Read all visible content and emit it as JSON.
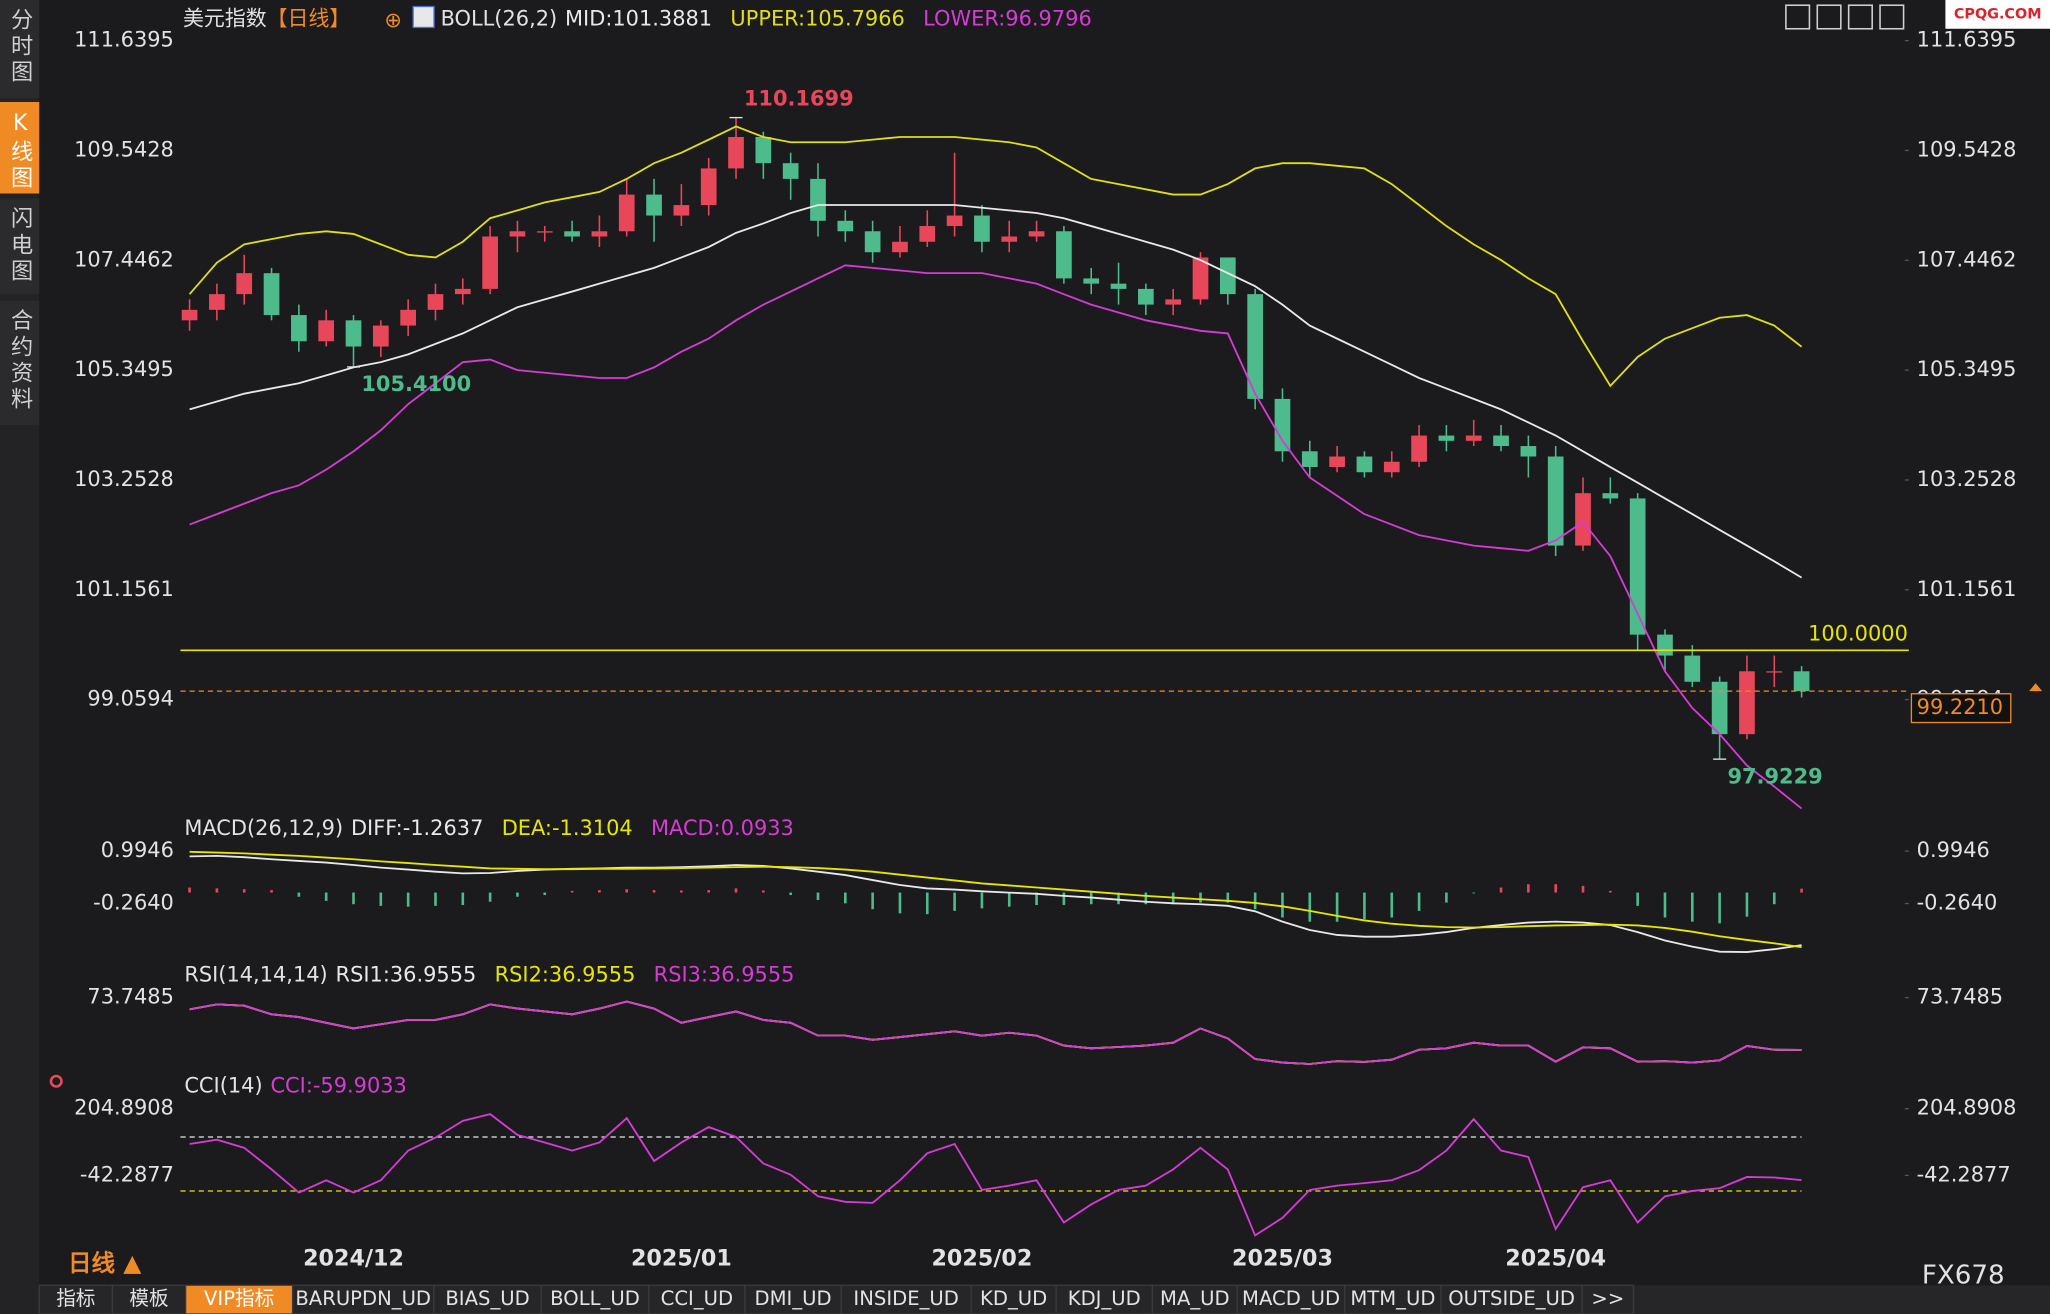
{
  "header": {
    "period_label": "日线 ▲",
    "brand": "FX678",
    "watermark": "CPQG.COM"
  },
  "sidebar": {
    "tabs": [
      "分时图",
      "K线图",
      "闪电图",
      "合约资料"
    ],
    "active_tab": 1
  },
  "bottom_tabs": {
    "tabs": [
      "指标",
      "模板",
      "VIP指标",
      "BARUPDN_UD",
      "BIAS_UD",
      "BOLL_UD",
      "CCI_UD",
      "DMI_UD",
      "INSIDE_UD",
      "KD_UD",
      "KDJ_UD",
      "MA_UD",
      "MACD_UD",
      "MTM_UD",
      "OUTSIDE_UD",
      ">>"
    ],
    "active_tab": 2
  },
  "chart_data": [
    {
      "type": "candlestick",
      "title": "美元指数",
      "subtitle": "【日线】",
      "indicator": "BOLL(26,2)",
      "up_color": "#e8475a",
      "down_color": "#4dbb8c",
      "categories": [
        null,
        null,
        null,
        null,
        null,
        null,
        "2024/12",
        null,
        null,
        null,
        null,
        null,
        null,
        null,
        null,
        null,
        null,
        null,
        "2025/01",
        null,
        null,
        null,
        null,
        null,
        null,
        null,
        null,
        null,
        null,
        "2025/02",
        null,
        null,
        null,
        null,
        null,
        null,
        null,
        null,
        null,
        null,
        "2025/03",
        null,
        null,
        null,
        null,
        null,
        null,
        null,
        null,
        null,
        "2025/04",
        null,
        null,
        null,
        null,
        null,
        null,
        null,
        null,
        null
      ],
      "open": [
        106.3,
        106.5,
        106.8,
        107.2,
        106.4,
        105.9,
        106.3,
        105.8,
        106.2,
        106.5,
        106.8,
        106.9,
        107.9,
        108.0,
        108.0,
        107.9,
        108.0,
        108.7,
        108.3,
        108.5,
        109.2,
        109.8,
        109.3,
        109.0,
        108.2,
        108.0,
        107.6,
        107.8,
        108.1,
        108.3,
        107.8,
        107.9,
        108.0,
        107.1,
        107.0,
        106.9,
        106.6,
        106.7,
        107.5,
        106.8,
        104.8,
        103.8,
        103.5,
        103.7,
        103.4,
        103.6,
        104.1,
        104.0,
        104.1,
        103.9,
        103.7,
        102.0,
        103.0,
        102.9,
        100.3,
        99.9,
        99.4,
        98.4,
        99.6,
        99.6
      ],
      "high": [
        106.7,
        107.0,
        107.55,
        107.3,
        106.6,
        106.5,
        106.4,
        106.3,
        106.7,
        107.0,
        107.1,
        108.1,
        108.2,
        108.1,
        108.2,
        108.3,
        109.0,
        109.0,
        108.9,
        109.4,
        110.1699,
        109.9,
        109.5,
        109.3,
        108.4,
        108.2,
        108.1,
        108.4,
        109.5,
        108.5,
        108.2,
        108.2,
        108.1,
        107.3,
        107.4,
        107.0,
        106.9,
        107.6,
        107.5,
        106.9,
        105.0,
        104.0,
        103.9,
        103.8,
        103.8,
        104.3,
        104.3,
        104.4,
        104.3,
        104.1,
        103.9,
        103.3,
        103.3,
        103.0,
        100.4,
        100.1,
        99.5,
        99.9,
        99.9,
        99.7
      ],
      "low": [
        106.1,
        106.3,
        106.6,
        106.3,
        105.7,
        105.8,
        105.41,
        105.6,
        106.0,
        106.3,
        106.6,
        106.8,
        107.6,
        107.8,
        107.8,
        107.7,
        107.9,
        107.8,
        108.1,
        108.3,
        109.0,
        109.0,
        108.6,
        107.9,
        107.8,
        107.4,
        107.5,
        107.7,
        107.9,
        107.6,
        107.6,
        107.8,
        107.0,
        106.8,
        106.6,
        106.4,
        106.4,
        106.6,
        106.6,
        104.6,
        103.6,
        103.3,
        103.4,
        103.3,
        103.3,
        103.5,
        103.8,
        103.9,
        103.8,
        103.3,
        101.8,
        101.9,
        102.8,
        100.0,
        99.6,
        99.3,
        97.9229,
        98.3,
        99.3,
        99.1
      ],
      "close": [
        106.5,
        106.8,
        107.2,
        106.4,
        105.9,
        106.3,
        105.8,
        106.2,
        106.5,
        106.8,
        106.9,
        107.9,
        108.0,
        108.0,
        107.9,
        108.0,
        108.7,
        108.3,
        108.5,
        109.2,
        109.8,
        109.3,
        109.0,
        108.2,
        108.0,
        107.6,
        107.8,
        108.1,
        108.3,
        107.8,
        107.9,
        108.0,
        107.1,
        107.0,
        106.9,
        106.6,
        106.7,
        107.5,
        106.8,
        104.8,
        103.8,
        103.5,
        103.7,
        103.4,
        103.6,
        104.1,
        104.0,
        104.1,
        103.9,
        103.7,
        102.0,
        103.0,
        102.9,
        100.3,
        99.9,
        99.4,
        98.4,
        99.6,
        99.6,
        99.221
      ],
      "series": [
        {
          "name": "MID:101.3881",
          "color": "#e8e8e8",
          "values": [
            104.6,
            104.75,
            104.9,
            105.0,
            105.1,
            105.25,
            105.4,
            105.5,
            105.65,
            105.85,
            106.05,
            106.3,
            106.55,
            106.7,
            106.85,
            107.0,
            107.15,
            107.3,
            107.5,
            107.7,
            107.97,
            108.15,
            108.35,
            108.5,
            108.5,
            108.5,
            108.5,
            108.5,
            108.5,
            108.45,
            108.4,
            108.35,
            108.25,
            108.1,
            107.95,
            107.8,
            107.65,
            107.45,
            107.2,
            106.95,
            106.6,
            106.2,
            105.95,
            105.7,
            105.45,
            105.2,
            105.0,
            104.8,
            104.6,
            104.35,
            104.1,
            103.8,
            103.5,
            103.2,
            102.9,
            102.6,
            102.3,
            102.0,
            101.7,
            101.3881
          ]
        },
        {
          "name": "UPPER:105.7966",
          "color": "#dede1a",
          "values": [
            106.8,
            107.4,
            107.75,
            107.85,
            107.95,
            108.0,
            107.95,
            107.75,
            107.55,
            107.5,
            107.8,
            108.25,
            108.4,
            108.55,
            108.65,
            108.75,
            109.0,
            109.3,
            109.5,
            109.75,
            110.0,
            109.8,
            109.7,
            109.7,
            109.7,
            109.75,
            109.8,
            109.8,
            109.8,
            109.75,
            109.7,
            109.6,
            109.3,
            109.0,
            108.9,
            108.8,
            108.7,
            108.7,
            108.9,
            109.2,
            109.3,
            109.3,
            109.25,
            109.2,
            108.9,
            108.5,
            108.1,
            107.75,
            107.45,
            107.1,
            106.8,
            105.9,
            105.05,
            105.6,
            105.95,
            106.15,
            106.35,
            106.4,
            106.2,
            105.7966
          ]
        },
        {
          "name": "LOWER:96.9796",
          "color": "#d63bd6",
          "values": [
            102.4,
            102.6,
            102.8,
            103.0,
            103.15,
            103.45,
            103.8,
            104.2,
            104.7,
            105.1,
            105.5,
            105.55,
            105.35,
            105.3,
            105.25,
            105.2,
            105.2,
            105.4,
            105.7,
            105.95,
            106.3,
            106.6,
            106.85,
            107.1,
            107.35,
            107.3,
            107.25,
            107.2,
            107.2,
            107.2,
            107.1,
            107.0,
            106.8,
            106.6,
            106.45,
            106.3,
            106.2,
            106.1,
            106.05,
            104.9,
            104.0,
            103.3,
            102.95,
            102.6,
            102.4,
            102.2,
            102.1,
            102.0,
            101.95,
            101.9,
            102.1,
            102.45,
            101.8,
            100.7,
            99.6,
            98.9,
            98.4,
            97.8,
            97.4,
            96.9796
          ]
        }
      ],
      "hlines": [
        {
          "value": 100,
          "label": "100.0000",
          "color": "#e6e600"
        }
      ],
      "last_price": {
        "value": 99.221,
        "label": "99.2210",
        "color": "#f08a24"
      },
      "annotations": [
        {
          "text": "110.1699",
          "value": 110.1699,
          "color": "#e8475a"
        },
        {
          "text": "105.4100",
          "value": 105.41,
          "color": "#4dbb8c"
        },
        {
          "text": "97.9229",
          "value": 97.9229,
          "color": "#4dbb8c"
        }
      ],
      "ylim": [
        96.94,
        112.29
      ],
      "yticks": [
        99.0594,
        101.1561,
        103.2528,
        105.3495,
        107.4462,
        109.5428,
        111.6395
      ]
    },
    {
      "type": "macd",
      "indicator": "MACD(26,12,9)",
      "series": [
        {
          "name": "DIFF:-1.2637",
          "color": "#e8e8e8",
          "values": [
            0.87,
            0.88,
            0.85,
            0.8,
            0.76,
            0.72,
            0.66,
            0.6,
            0.55,
            0.5,
            0.46,
            0.47,
            0.52,
            0.55,
            0.57,
            0.58,
            0.6,
            0.6,
            0.61,
            0.63,
            0.66,
            0.64,
            0.58,
            0.5,
            0.42,
            0.3,
            0.18,
            0.1,
            0.07,
            0.03,
            0.0,
            -0.03,
            -0.08,
            -0.12,
            -0.17,
            -0.22,
            -0.26,
            -0.28,
            -0.32,
            -0.45,
            -0.7,
            -0.9,
            -1.02,
            -1.06,
            -1.06,
            -1.02,
            -0.95,
            -0.85,
            -0.78,
            -0.72,
            -0.7,
            -0.72,
            -0.78,
            -0.95,
            -1.15,
            -1.3,
            -1.42,
            -1.43,
            -1.36,
            -1.2637
          ]
        },
        {
          "name": "DEA:-1.3104",
          "color": "#e6e600",
          "values": [
            0.98,
            0.96,
            0.94,
            0.91,
            0.88,
            0.84,
            0.8,
            0.75,
            0.71,
            0.66,
            0.62,
            0.58,
            0.57,
            0.56,
            0.56,
            0.57,
            0.57,
            0.58,
            0.59,
            0.6,
            0.61,
            0.62,
            0.61,
            0.59,
            0.55,
            0.5,
            0.43,
            0.36,
            0.29,
            0.22,
            0.17,
            0.12,
            0.07,
            0.02,
            -0.03,
            -0.08,
            -0.12,
            -0.16,
            -0.2,
            -0.25,
            -0.33,
            -0.44,
            -0.56,
            -0.67,
            -0.75,
            -0.8,
            -0.83,
            -0.84,
            -0.83,
            -0.81,
            -0.79,
            -0.78,
            -0.77,
            -0.79,
            -0.85,
            -0.94,
            -1.05,
            -1.14,
            -1.22,
            -1.3104
          ]
        }
      ],
      "histogram": {
        "name": "MACD:0.0933",
        "color": "#d63bd6",
        "up_color": "#e8475a",
        "down_color": "#4dbb8c",
        "values": [
          0.12,
          0.1,
          0.08,
          0.06,
          -0.1,
          -0.2,
          -0.28,
          -0.32,
          -0.34,
          -0.32,
          -0.3,
          -0.22,
          -0.1,
          -0.06,
          0.04,
          0.06,
          0.08,
          0.06,
          0.05,
          0.06,
          0.1,
          0.05,
          -0.06,
          -0.18,
          -0.26,
          -0.4,
          -0.5,
          -0.52,
          -0.44,
          -0.38,
          -0.34,
          -0.3,
          -0.3,
          -0.28,
          -0.28,
          -0.28,
          -0.28,
          -0.24,
          -0.24,
          -0.4,
          -0.6,
          -0.7,
          -0.7,
          -0.64,
          -0.6,
          -0.44,
          -0.24,
          -0.02,
          0.12,
          0.2,
          0.2,
          0.16,
          0.04,
          -0.32,
          -0.6,
          -0.7,
          -0.74,
          -0.58,
          -0.28,
          0.0933
        ]
      },
      "ylim": [
        -1.55,
        1.34
      ],
      "yticks": [
        {
          "value": -0.264,
          "label": "-0.2640"
        },
        0.9946
      ]
    },
    {
      "type": "line",
      "indicator": "RSI(14,14,14)",
      "series": [
        {
          "name": "RSI1:36.9555",
          "color": "#e8e8e8",
          "values": [
            65.5,
            69,
            68,
            62,
            60,
            56,
            52,
            55,
            58,
            58,
            62,
            69,
            66,
            64,
            62,
            66,
            71,
            66,
            56,
            60,
            64,
            58,
            56,
            47,
            47,
            44,
            46,
            48,
            50,
            47,
            49,
            47,
            40,
            38,
            39,
            40,
            42,
            52,
            45,
            30.5,
            28,
            27,
            29,
            28.5,
            30,
            37,
            38,
            42,
            40,
            40,
            28.7,
            38.8,
            38,
            28.7,
            29,
            28,
            29.6,
            39.7,
            37,
            36.9555
          ]
        },
        {
          "name": "RSI2:36.9555",
          "color": "#e6e600",
          "values": [
            65.5,
            69,
            68,
            62,
            60,
            56,
            52,
            55,
            58,
            58,
            62,
            69,
            66,
            64,
            62,
            66,
            71,
            66,
            56,
            60,
            64,
            58,
            56,
            47,
            47,
            44,
            46,
            48,
            50,
            47,
            49,
            47,
            40,
            38,
            39,
            40,
            42,
            52,
            45,
            30.5,
            28,
            27,
            29,
            28.5,
            30,
            37,
            38,
            42,
            40,
            40,
            28.7,
            38.8,
            38,
            28.7,
            29,
            28,
            29.6,
            39.7,
            37,
            36.9555
          ]
        },
        {
          "name": "RSI3:36.9555",
          "color": "#d63bd6",
          "values": [
            65.5,
            69,
            68,
            62,
            60,
            56,
            52,
            55,
            58,
            58,
            62,
            69,
            66,
            64,
            62,
            66,
            71,
            66,
            56,
            60,
            64,
            58,
            56,
            47,
            47,
            44,
            46,
            48,
            50,
            47,
            49,
            47,
            40,
            38,
            39,
            40,
            42,
            52,
            45,
            30.5,
            28,
            27,
            29,
            28.5,
            30,
            37,
            38,
            42,
            40,
            40,
            28.7,
            38.8,
            38,
            28.7,
            29,
            28,
            29.6,
            39.7,
            37,
            36.9555
          ]
        }
      ],
      "ylim": [
        21.3,
        94.9
      ],
      "yticks": [
        73.7485
      ]
    },
    {
      "type": "line",
      "indicator": "CCI(14)",
      "series": [
        {
          "name": "CCI:-59.9033",
          "color": "#d63bd6",
          "values": [
            74,
            90,
            60,
            -20,
            -106,
            -60,
            -106,
            -60,
            50,
            98,
            160,
            185,
            108,
            80,
            50,
            80,
            170,
            11,
            80,
            137,
            100,
            2,
            -40,
            -120,
            -140,
            -144,
            -60,
            40,
            74,
            -96,
            -80,
            -60,
            -217,
            -150,
            -96,
            -80,
            -20,
            60,
            -20,
            -265,
            -200,
            -96,
            -80,
            -71,
            -60,
            -23,
            50,
            166,
            50,
            26,
            -241,
            -86,
            -60,
            -217,
            -120,
            -100,
            -90,
            -48,
            -50,
            -59.9033
          ]
        }
      ],
      "hlines": [
        {
          "value": 100,
          "color": "#e8e8e8"
        },
        {
          "value": -100,
          "color": "#e6e600"
        }
      ],
      "ylim": [
        -289.5,
        316.4
      ],
      "yticks": [
        {
          "value": -42.2877,
          "label": "-42.2877"
        },
        204.8908
      ]
    }
  ]
}
